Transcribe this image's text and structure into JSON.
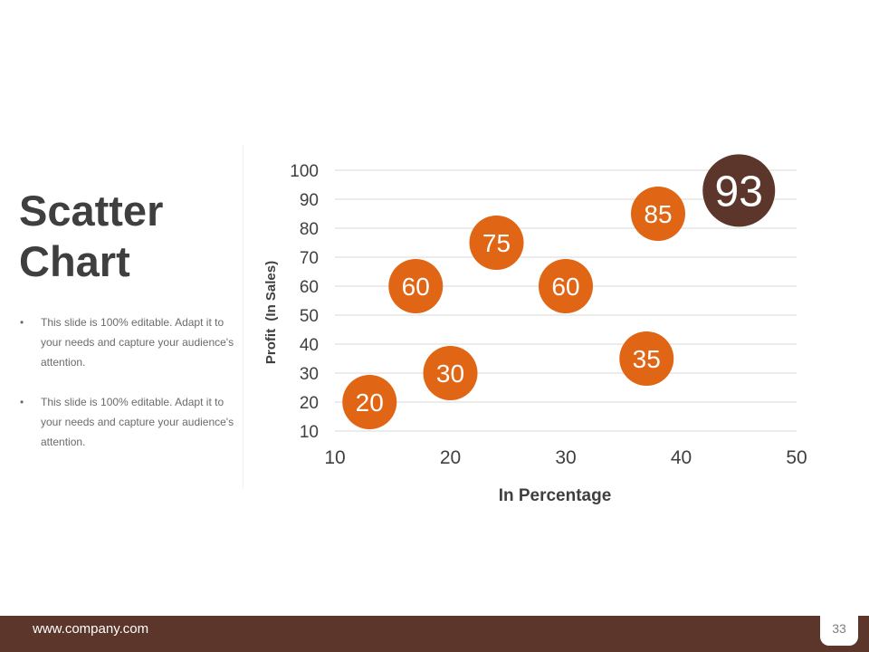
{
  "slide": {
    "title_line1": "Scatter",
    "title_line2": "Chart",
    "bullets": [
      "This slide is 100% editable. Adapt it to your needs and capture your audience's attention.",
      "This slide is 100% editable. Adapt it to your needs and capture your audience's attention."
    ],
    "bullet_symbol": "•"
  },
  "footer": {
    "url": "www.company.com",
    "page_number": "33"
  },
  "colors": {
    "accent_orange": "#e06514",
    "accent_brown": "#5c352b",
    "gridline": "#d9d9d9",
    "axis_text": "#3f3f3f"
  },
  "chart_data": {
    "type": "scatter",
    "title": "",
    "xlabel": "In Percentage",
    "ylabel": "Profit  (In Sales)",
    "xlim": [
      10,
      50
    ],
    "ylim": [
      10,
      100
    ],
    "x_ticks": [
      10,
      20,
      30,
      40,
      50
    ],
    "y_ticks": [
      10,
      20,
      30,
      40,
      50,
      60,
      70,
      80,
      90,
      100
    ],
    "grid": "horizontal",
    "legend": "none",
    "points": [
      {
        "x": 13,
        "y": 20,
        "label": "20",
        "color": "#e06514"
      },
      {
        "x": 17,
        "y": 60,
        "label": "60",
        "color": "#e06514"
      },
      {
        "x": 20,
        "y": 30,
        "label": "30",
        "color": "#e06514"
      },
      {
        "x": 24,
        "y": 75,
        "label": "75",
        "color": "#e06514"
      },
      {
        "x": 30,
        "y": 60,
        "label": "60",
        "color": "#e06514"
      },
      {
        "x": 37,
        "y": 35,
        "label": "35",
        "color": "#e06514"
      },
      {
        "x": 38,
        "y": 85,
        "label": "85",
        "color": "#e06514"
      },
      {
        "x": 45,
        "y": 93,
        "label": "93",
        "color": "#5c352b"
      }
    ]
  }
}
